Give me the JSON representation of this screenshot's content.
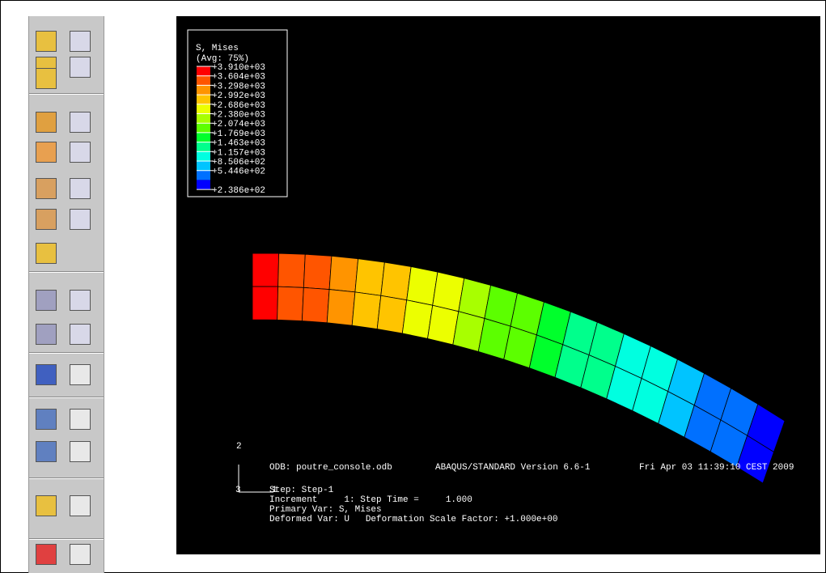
{
  "legend": {
    "title": "S, Mises",
    "subtitle": "(Avg: 75%)",
    "labels": [
      "+3.910e+03",
      "+3.604e+03",
      "+3.298e+03",
      "+2.992e+03",
      "+2.686e+03",
      "+2.380e+03",
      "+2.074e+03",
      "+1.769e+03",
      "+1.463e+03",
      "+1.157e+03",
      "+8.506e+02",
      "+5.446e+02",
      "+2.386e+02"
    ],
    "colors": [
      "#ff0000",
      "#ff5500",
      "#ff9400",
      "#ffc400",
      "#ecff00",
      "#a8ff00",
      "#5cff00",
      "#00ff2c",
      "#00ff8c",
      "#00ffe0",
      "#00c4ff",
      "#0070ff",
      "#0000ff"
    ]
  },
  "triad": {
    "x": "1",
    "y": "2",
    "z": "3"
  },
  "info": {
    "odb": "ODB: poutre_console.odb",
    "version": "ABAQUS/STANDARD Version 6.6-1",
    "date": "Fri Apr 03 11:39:10 CEST 2009",
    "step": "Step: Step-1",
    "increment": "Increment     1: Step Time =     1.000",
    "primary": "Primary Var: S, Mises",
    "deformed": "Deformed Var: U   Deformation Scale Factor: +1.000e+00"
  }
}
